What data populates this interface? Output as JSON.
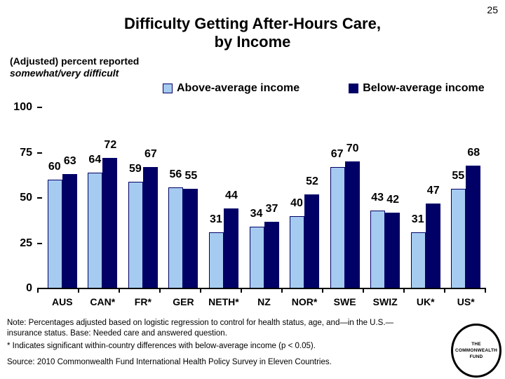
{
  "page_number": "25",
  "title": {
    "line1": "Difficulty Getting After-Hours Care,",
    "line2": "by Income"
  },
  "subtitle": {
    "line1": "(Adjusted) percent reported",
    "line2": "somewhat/very difficult"
  },
  "chart_data": {
    "type": "bar",
    "title": "Difficulty Getting After-Hours Care, by Income",
    "categories": [
      "AUS",
      "CAN*",
      "FR*",
      "GER",
      "NETH*",
      "NZ",
      "NOR*",
      "SWE",
      "SWIZ",
      "UK*",
      "US*"
    ],
    "series": [
      {
        "name": "Above-average income",
        "color": "#A6CBF1",
        "values": [
          60,
          64,
          59,
          56,
          31,
          34,
          40,
          67,
          43,
          31,
          55
        ]
      },
      {
        "name": "Below-average income",
        "color": "#000066",
        "values": [
          63,
          72,
          67,
          55,
          44,
          37,
          52,
          70,
          42,
          47,
          68
        ]
      }
    ],
    "xlabel": "",
    "ylabel": "(Adjusted) percent reported somewhat/very difficult",
    "ylim": [
      0,
      100
    ],
    "yticks": [
      0,
      25,
      50,
      75,
      100
    ],
    "grid": false,
    "legend_position": "top"
  },
  "notes": {
    "line1": "Note: Percentages adjusted based on logistic regression to control for health status, age, and—in the U.S.—",
    "line2": "insurance status. Base: Needed care and answered question.",
    "asterisk": "* Indicates significant within-country differences with below-average income (p < 0.05).",
    "source": "Source: 2010 Commonwealth Fund International Health Policy Survey in Eleven Countries."
  },
  "logo": {
    "line1": "THE",
    "line2": "COMMONWEALTH",
    "line3": "FUND"
  },
  "colors": {
    "above_average_bar": "#A6CBF1",
    "below_average_bar": "#000066",
    "bar_outline": "#000066",
    "axis": "#000000",
    "background": "#ffffff",
    "text": "#000000"
  }
}
